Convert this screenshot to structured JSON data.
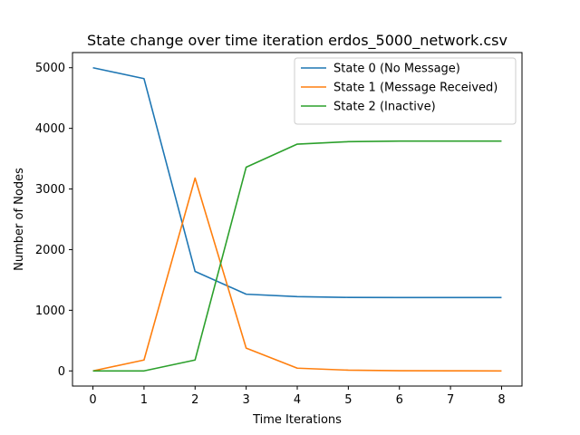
{
  "chart_data": {
    "type": "line",
    "title": "State change over time iteration erdos_5000_network.csv",
    "xlabel": "Time Iterations",
    "ylabel": "Number of Nodes",
    "x": [
      0,
      1,
      2,
      3,
      4,
      5,
      6,
      7,
      8
    ],
    "xlim": [
      -0.4,
      8.4
    ],
    "ylim": [
      -250,
      5250
    ],
    "xticks": [
      0,
      1,
      2,
      3,
      4,
      5,
      6,
      7,
      8
    ],
    "yticks": [
      0,
      1000,
      2000,
      3000,
      4000,
      5000
    ],
    "grid": false,
    "legend_position": "top-right",
    "series": [
      {
        "name": "State 0 (No Message)",
        "color": "#1f77b4",
        "values": [
          5000,
          4820,
          1640,
          1265,
          1225,
          1212,
          1210,
          1210,
          1210
        ]
      },
      {
        "name": "State 1 (Message Received)",
        "color": "#ff7f0e",
        "values": [
          0,
          180,
          3180,
          375,
          45,
          12,
          3,
          1,
          0
        ]
      },
      {
        "name": "State 2 (Inactive)",
        "color": "#2ca02c",
        "values": [
          0,
          0,
          180,
          3360,
          3740,
          3780,
          3790,
          3790,
          3790
        ]
      }
    ]
  }
}
